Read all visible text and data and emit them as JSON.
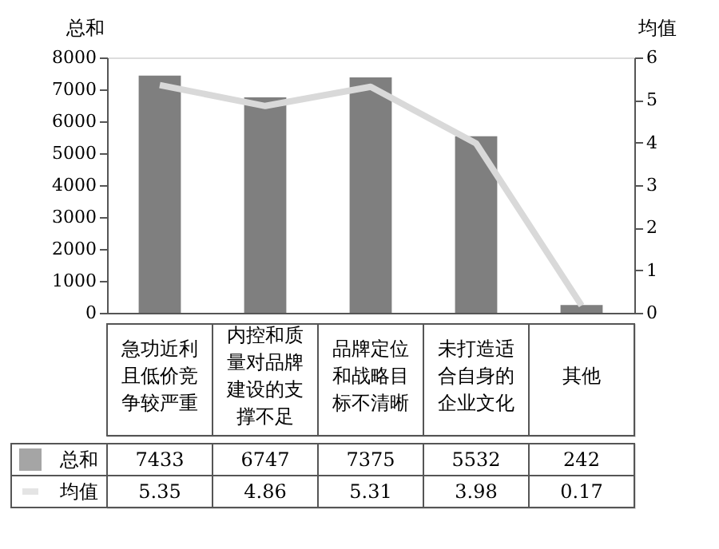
{
  "chart_data": {
    "type": "bar",
    "categories": [
      "急功近利且低价竞争较严重",
      "内控和质量对品牌建设的支撑不足",
      "品牌定位和战略目标不清晰",
      "未打造适合自身的企业文化",
      "其他"
    ],
    "series": [
      {
        "name": "总和",
        "type": "bar",
        "color": "#7f7f7f",
        "values": [
          7433,
          6747,
          7375,
          5532,
          242
        ]
      },
      {
        "name": "均值",
        "type": "line",
        "axis": "y2",
        "color": "#d9d9d9",
        "values": [
          5.35,
          4.86,
          5.31,
          3.98,
          0.17
        ]
      }
    ],
    "ylabel": "总和",
    "y2label": "均值",
    "ylim": [
      0,
      8000
    ],
    "yticks": [
      0,
      {
        "value": 1000,
        "label": "1000"
      },
      {
        "value": 2000,
        "label": "2000"
      },
      {
        "value": 3000,
        "label": "3000"
      },
      {
        "value": 4000,
        "label": "4000"
      },
      {
        "value": 5000,
        "label": "5000"
      },
      {
        "value": 6000,
        "label": "6000"
      },
      {
        "value": 7000,
        "label": "7000"
      },
      {
        "value": 8000,
        "label": "8000"
      }
    ],
    "y2lim": [
      0,
      6
    ],
    "y2ticks": [
      0,
      1,
      2,
      3,
      4,
      5,
      6
    ],
    "data_labels": true,
    "legend": "bottom",
    "grid": false,
    "marker": "none"
  }
}
